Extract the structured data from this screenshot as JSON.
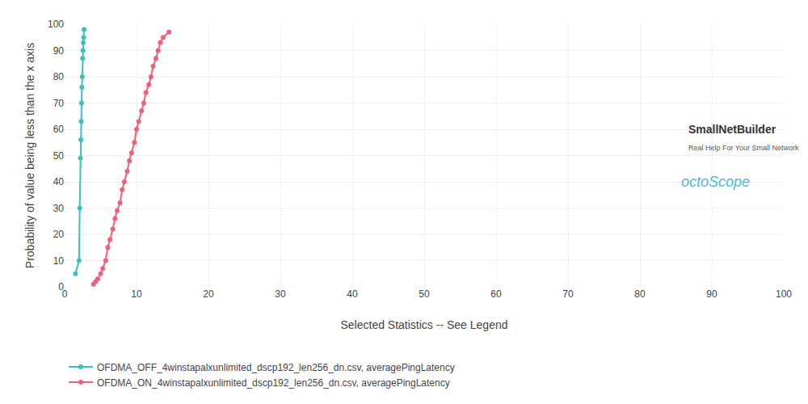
{
  "chart_data": {
    "type": "line",
    "xlabel": "Selected Statistics -- See Legend",
    "ylabel": "Probability of value being less than the x axis",
    "xlim": [
      0,
      100
    ],
    "ylim": [
      0,
      100
    ],
    "xticks": [
      0,
      10,
      20,
      30,
      40,
      50,
      60,
      70,
      80,
      90,
      100
    ],
    "yticks": [
      0,
      10,
      20,
      30,
      40,
      50,
      60,
      70,
      80,
      90,
      100
    ],
    "grid": true,
    "legend": "bottom",
    "marker": "circle",
    "series": [
      {
        "name": "OFDMA_OFF_4winstapalxunlimited_dscp192_len256_dn.csv, averagePingLatency",
        "color": "#3dbfbf",
        "x": [
          1.5,
          2.0,
          2.1,
          2.2,
          2.25,
          2.3,
          2.35,
          2.4,
          2.45,
          2.5,
          2.55,
          2.6,
          2.65,
          2.7
        ],
        "values": [
          5,
          10,
          30,
          49,
          56,
          63,
          70,
          76,
          80,
          87,
          90,
          93,
          95,
          98
        ]
      },
      {
        "name": "OFDMA_ON_4winstapalxunlimited_dscp192_len256_dn.csv, averagePingLatency",
        "color": "#f0607a",
        "x": [
          4.0,
          4.3,
          4.6,
          5.0,
          5.3,
          5.7,
          6.0,
          6.3,
          6.7,
          7.0,
          7.3,
          7.7,
          8.0,
          8.3,
          8.7,
          9.0,
          9.3,
          9.7,
          10.0,
          10.3,
          10.7,
          11.0,
          11.3,
          11.7,
          12.0,
          12.3,
          12.7,
          13.0,
          13.3,
          13.7,
          14.5
        ],
        "values": [
          1,
          2,
          3,
          5,
          7,
          10,
          15,
          18,
          22,
          26,
          29,
          32,
          37,
          40,
          44,
          48,
          51,
          55,
          60,
          63,
          67,
          70,
          74,
          77,
          80,
          84,
          87,
          90,
          93,
          95,
          97
        ]
      }
    ],
    "annotations": [
      "SmallNetBuilder",
      "Real Help For Your Small Network",
      "octoScope"
    ]
  }
}
